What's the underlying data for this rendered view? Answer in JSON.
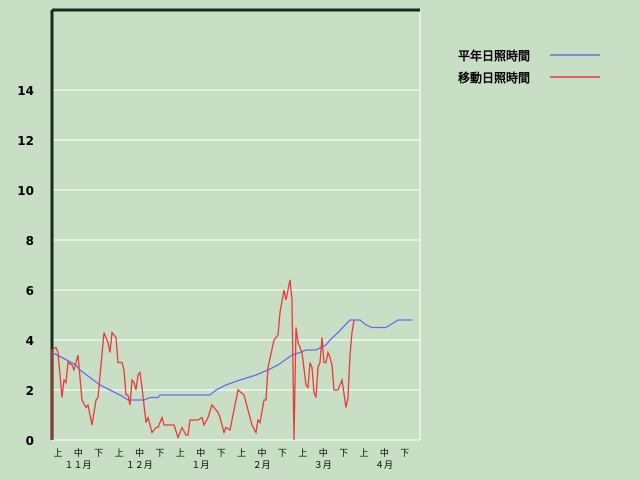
{
  "chart_data": {
    "type": "line",
    "xlabel": "",
    "ylabel": "",
    "ylim": [
      0,
      17.2
    ],
    "yticks": [
      0,
      2,
      4,
      6,
      8,
      10,
      12,
      14
    ],
    "grid": true,
    "legend_position": "top-right",
    "x_dekad_labels": [
      "上",
      "中",
      "下",
      "上",
      "中",
      "下",
      "上",
      "中",
      "下",
      "上",
      "中",
      "下",
      "上",
      "中",
      "下",
      "上",
      "中",
      "下"
    ],
    "x_month_labels": [
      "１１月",
      "１２月",
      "１月",
      "２月",
      "３月",
      "４月"
    ],
    "series": [
      {
        "name": "平年日照時間",
        "color": "#6a6af0",
        "points": [
          [
            "11-01",
            3.5
          ],
          [
            "11-06",
            3.3
          ],
          [
            "11-13",
            3.0
          ],
          [
            "11-15",
            2.8
          ],
          [
            "11-20",
            2.5
          ],
          [
            "11-25",
            2.2
          ],
          [
            "11-30",
            2.0
          ],
          [
            "12-05",
            1.8
          ],
          [
            "12-09",
            1.6
          ],
          [
            "12-17",
            1.6
          ],
          [
            "12-20",
            1.7
          ],
          [
            "12-24",
            1.7
          ],
          [
            "12-25",
            1.8
          ],
          [
            "01-19",
            1.8
          ],
          [
            "01-22",
            2.0
          ],
          [
            "01-27",
            2.2
          ],
          [
            "02-03",
            2.4
          ],
          [
            "02-11",
            2.6
          ],
          [
            "02-17",
            2.8
          ],
          [
            "02-22",
            3.0
          ],
          [
            "03-01",
            3.4
          ],
          [
            "03-05",
            3.5
          ],
          [
            "03-08",
            3.6
          ],
          [
            "03-13",
            3.6
          ],
          [
            "03-18",
            3.8
          ],
          [
            "03-20",
            4.0
          ],
          [
            "03-24",
            4.3
          ],
          [
            "03-30",
            4.8
          ],
          [
            "04-04",
            4.8
          ],
          [
            "04-07",
            4.6
          ],
          [
            "04-10",
            4.5
          ],
          [
            "04-17",
            4.5
          ],
          [
            "04-21",
            4.7
          ],
          [
            "04-23",
            4.8
          ],
          [
            "04-30",
            4.8
          ]
        ]
      },
      {
        "name": "移動日照時間",
        "color": "#e83a3a",
        "points": [
          [
            "11-01",
            0
          ],
          [
            "11-01",
            3.6
          ],
          [
            "11-03",
            3.7
          ],
          [
            "11-04",
            3.5
          ],
          [
            "11-06",
            1.7
          ],
          [
            "11-07",
            2.4
          ],
          [
            "11-08",
            2.3
          ],
          [
            "11-09",
            3.1
          ],
          [
            "11-11",
            3.0
          ],
          [
            "11-12",
            2.8
          ],
          [
            "11-14",
            3.4
          ],
          [
            "11-16",
            1.6
          ],
          [
            "11-18",
            1.3
          ],
          [
            "11-19",
            1.4
          ],
          [
            "11-21",
            0.6
          ],
          [
            "11-23",
            1.6
          ],
          [
            "11-24",
            1.7
          ],
          [
            "11-27",
            4.3
          ],
          [
            "11-29",
            3.9
          ],
          [
            "11-30",
            3.5
          ],
          [
            "12-01",
            4.3
          ],
          [
            "12-03",
            4.1
          ],
          [
            "12-04",
            3.1
          ],
          [
            "12-06",
            3.1
          ],
          [
            "12-07",
            2.8
          ],
          [
            "12-08",
            1.8
          ],
          [
            "12-09",
            1.8
          ],
          [
            "12-10",
            1.4
          ],
          [
            "12-11",
            2.4
          ],
          [
            "12-12",
            2.3
          ],
          [
            "12-13",
            2.0
          ],
          [
            "12-14",
            2.6
          ],
          [
            "12-15",
            2.7
          ],
          [
            "12-16",
            2.1
          ],
          [
            "12-18",
            0.7
          ],
          [
            "12-19",
            0.9
          ],
          [
            "12-21",
            0.3
          ],
          [
            "12-23",
            0.5
          ],
          [
            "12-24",
            0.5
          ],
          [
            "12-26",
            0.9
          ],
          [
            "12-27",
            0.6
          ],
          [
            "12-29",
            0.6
          ],
          [
            "01-01",
            0.6
          ],
          [
            "01-03",
            0.1
          ],
          [
            "01-05",
            0.5
          ],
          [
            "01-07",
            0.2
          ],
          [
            "01-08",
            0.2
          ],
          [
            "01-09",
            0.8
          ],
          [
            "01-11",
            0.8
          ],
          [
            "01-13",
            0.8
          ],
          [
            "01-15",
            0.9
          ],
          [
            "01-16",
            0.6
          ],
          [
            "01-18",
            0.9
          ],
          [
            "01-20",
            1.4
          ],
          [
            "01-21",
            1.3
          ],
          [
            "01-23",
            1.1
          ],
          [
            "01-24",
            0.9
          ],
          [
            "01-26",
            0.3
          ],
          [
            "01-27",
            0.5
          ],
          [
            "01-29",
            0.4
          ],
          [
            "02-02",
            2.0
          ],
          [
            "02-05",
            1.8
          ],
          [
            "02-07",
            1.2
          ],
          [
            "02-09",
            0.6
          ],
          [
            "02-11",
            0.3
          ],
          [
            "02-12",
            0.8
          ],
          [
            "02-13",
            0.7
          ],
          [
            "02-15",
            1.6
          ],
          [
            "02-16",
            1.6
          ],
          [
            "02-17",
            2.9
          ],
          [
            "02-20",
            4.0
          ],
          [
            "02-22",
            4.2
          ],
          [
            "02-23",
            5.1
          ],
          [
            "02-25",
            6.0
          ],
          [
            "02-26",
            5.6
          ],
          [
            "02-28",
            6.4
          ],
          [
            "03-01",
            5.6
          ],
          [
            "03-02",
            0
          ],
          [
            "03-03",
            4.5
          ],
          [
            "03-04",
            3.9
          ],
          [
            "03-06",
            3.5
          ],
          [
            "03-08",
            2.2
          ],
          [
            "03-09",
            2.1
          ],
          [
            "03-10",
            3.1
          ],
          [
            "03-11",
            2.9
          ],
          [
            "03-12",
            1.9
          ],
          [
            "03-13",
            1.7
          ],
          [
            "03-14",
            2.9
          ],
          [
            "03-15",
            3.1
          ],
          [
            "03-16",
            4.1
          ],
          [
            "03-17",
            3.1
          ],
          [
            "03-18",
            3.1
          ],
          [
            "03-19",
            3.5
          ],
          [
            "03-20",
            3.3
          ],
          [
            "03-21",
            3.0
          ],
          [
            "03-22",
            2.0
          ],
          [
            "03-24",
            2.0
          ],
          [
            "03-26",
            2.4
          ],
          [
            "03-28",
            1.3
          ],
          [
            "03-29",
            1.7
          ],
          [
            "03-30",
            3.4
          ],
          [
            "03-31",
            4.3
          ],
          [
            "04-01",
            4.8
          ]
        ]
      }
    ]
  }
}
